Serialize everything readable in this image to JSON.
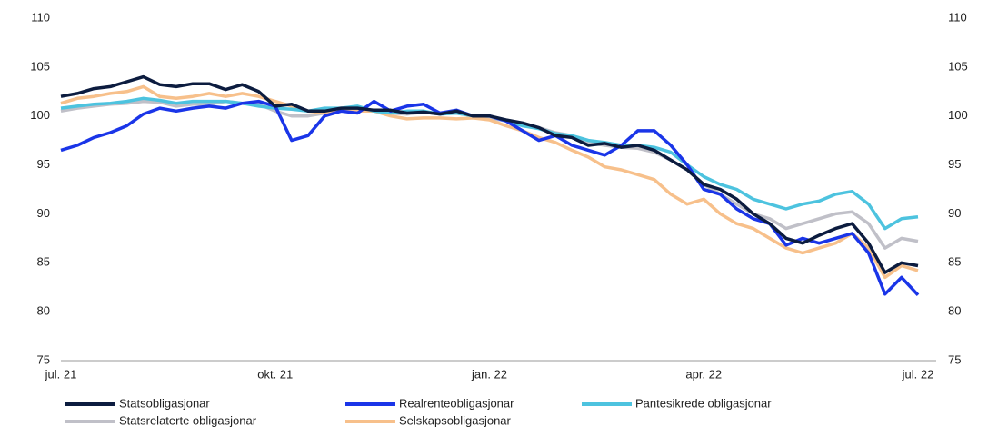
{
  "chart_data": {
    "type": "line",
    "categories": [
      "jul. 21",
      null,
      null,
      null,
      null,
      null,
      null,
      null,
      null,
      null,
      null,
      null,
      null,
      "okt. 21",
      null,
      null,
      null,
      null,
      null,
      null,
      null,
      null,
      null,
      null,
      null,
      null,
      "jan. 22",
      null,
      null,
      null,
      null,
      null,
      null,
      null,
      null,
      null,
      null,
      null,
      null,
      "apr. 22",
      null,
      null,
      null,
      null,
      null,
      null,
      null,
      null,
      null,
      null,
      null,
      null,
      "jul. 22"
    ],
    "ylim": [
      75,
      110
    ],
    "yticks": [
      75,
      80,
      85,
      90,
      95,
      100,
      105,
      110
    ],
    "y2lim": [
      75,
      110
    ],
    "y2ticks": [
      75,
      80,
      85,
      90,
      95,
      100,
      105,
      110
    ],
    "series": [
      {
        "name": "Statsobligasjonar",
        "color": "#0c1c3f",
        "values": [
          102,
          102.3,
          102.8,
          103,
          103.5,
          104,
          103.2,
          103,
          103.3,
          103.3,
          102.7,
          103.2,
          102.5,
          101,
          101.2,
          100.5,
          100.5,
          100.8,
          100.8,
          100.6,
          100.6,
          100.3,
          100.4,
          100.2,
          100.5,
          100,
          100,
          99.6,
          99.3,
          98.8,
          98,
          97.8,
          97,
          97.2,
          96.8,
          97,
          96.5,
          95.5,
          94.5,
          93,
          92.5,
          91.5,
          90,
          89,
          87.5,
          87,
          87.8,
          88.5,
          89,
          87,
          84,
          85,
          84.7
        ]
      },
      {
        "name": "Realrenteobligasjonar",
        "color": "#1a35e8",
        "values": [
          96.5,
          97,
          97.8,
          98.3,
          99,
          100.2,
          100.8,
          100.5,
          100.8,
          101,
          100.8,
          101.3,
          101.5,
          101,
          97.5,
          98,
          100,
          100.5,
          100.3,
          101.5,
          100.5,
          101,
          101.2,
          100.3,
          100.6,
          100,
          100,
          99.5,
          98.5,
          97.5,
          98,
          97,
          96.5,
          96,
          97,
          98.5,
          98.5,
          97,
          95,
          92.5,
          92,
          90.5,
          89.5,
          89,
          86.8,
          87.5,
          87,
          87.5,
          88,
          86,
          81.8,
          83.5,
          81.7
        ]
      },
      {
        "name": "Pantesikrede obligasjonar",
        "color": "#4dc3df",
        "values": [
          100.8,
          101,
          101.2,
          101.3,
          101.5,
          101.8,
          101.6,
          101.3,
          101.5,
          101.5,
          101.5,
          101.3,
          101,
          100.8,
          100.7,
          100.5,
          100.8,
          100.8,
          101,
          100.5,
          100.3,
          100.5,
          100.5,
          100.2,
          100.3,
          100,
          100,
          99.5,
          99,
          98.7,
          98.2,
          98,
          97.5,
          97.3,
          97,
          97,
          96.8,
          96.3,
          95,
          93.8,
          93,
          92.5,
          91.5,
          91,
          90.5,
          91,
          91.3,
          92,
          92.3,
          91,
          88.5,
          89.5,
          89.7
        ]
      },
      {
        "name": "Statsrelaterte obligasjonar",
        "color": "#c0c0c8",
        "values": [
          100.5,
          100.8,
          101,
          101.2,
          101.3,
          101.5,
          101.4,
          101,
          101.2,
          101.2,
          101.5,
          101.3,
          101.2,
          100.5,
          100,
          100,
          100.3,
          100.5,
          100.8,
          100.5,
          100.3,
          100.2,
          100.4,
          100.2,
          100.3,
          100,
          99.8,
          99.5,
          99,
          98.8,
          98.3,
          98,
          97.3,
          97,
          96.8,
          96.7,
          96.3,
          95.5,
          94.5,
          93,
          92,
          91,
          90,
          89.5,
          88.5,
          89,
          89.5,
          90,
          90.2,
          89,
          86.5,
          87.5,
          87.2
        ]
      },
      {
        "name": "Selskapsobligasjonar",
        "color": "#f7c08b",
        "values": [
          101.3,
          101.8,
          102,
          102.3,
          102.5,
          103,
          102,
          101.8,
          102,
          102.3,
          102,
          102.3,
          102,
          101.5,
          101,
          100.5,
          100.3,
          100.5,
          100.5,
          100.5,
          100,
          99.7,
          99.8,
          99.8,
          99.7,
          99.8,
          99.6,
          99,
          98.5,
          97.8,
          97.3,
          96.5,
          95.8,
          94.8,
          94.5,
          94,
          93.5,
          92,
          91,
          91.5,
          90,
          89,
          88.5,
          87.5,
          86.5,
          86,
          86.5,
          87,
          88,
          86.5,
          83.5,
          84.7,
          84.2
        ]
      }
    ]
  }
}
